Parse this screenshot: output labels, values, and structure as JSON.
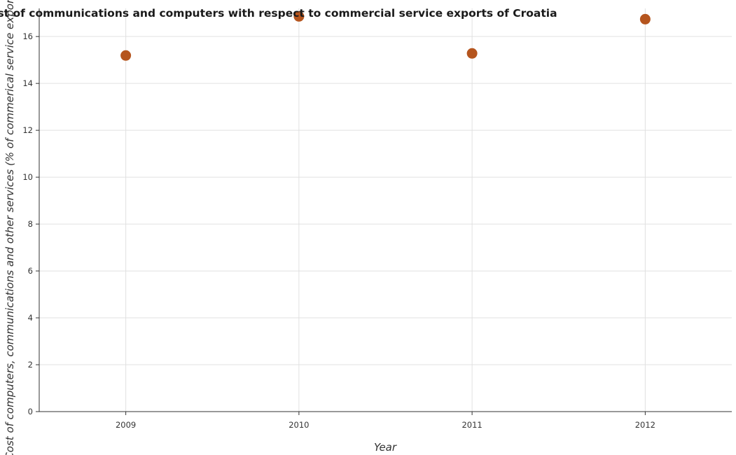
{
  "chart_data": {
    "type": "scatter",
    "title": "Cost of communications and computers with respect to commercial service exports of Croatia",
    "xlabel": "Year",
    "ylabel": "Cost of computers, communications and other services (% of commerical service exports)",
    "categories": [
      "2009",
      "2010",
      "2011",
      "2012"
    ],
    "values": [
      15.19,
      16.86,
      15.28,
      16.74
    ],
    "ylim": [
      0,
      17.2
    ],
    "yticks": [
      0,
      2,
      4,
      6,
      8,
      10,
      12,
      14,
      16
    ],
    "grid": true,
    "legend": "none",
    "point_color": "#b5551e"
  }
}
